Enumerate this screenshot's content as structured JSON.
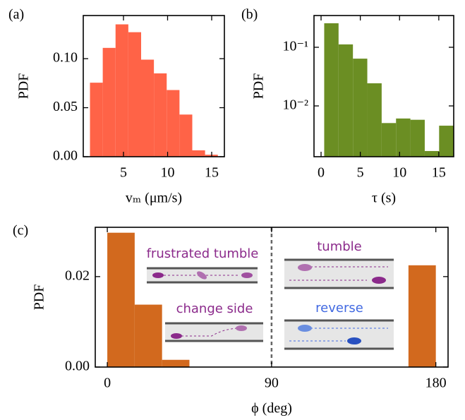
{
  "chart_data": [
    {
      "type": "histogram",
      "panel_label": "(a)",
      "xlabel": "vₘ (μm/s)",
      "ylabel": "PDF",
      "color": "#ff6347",
      "bins": [
        1.2,
        2.65,
        4.1,
        5.55,
        7.0,
        8.45,
        9.9,
        11.35,
        12.8,
        14.25,
        15.7
      ],
      "values": [
        0.0755,
        0.111,
        0.135,
        0.127,
        0.099,
        0.085,
        0.068,
        0.043,
        0.0065,
        0.002
      ],
      "xlim": [
        0.44,
        16.44
      ],
      "xticks": [
        5,
        10,
        15
      ],
      "ylim": [
        0,
        0.144
      ],
      "yticks": [
        {
          "value": 0,
          "label": "0.00"
        },
        {
          "value": 0.05,
          "label": "0.05"
        },
        {
          "value": 0.1,
          "label": "0.10"
        }
      ],
      "log_y": false
    },
    {
      "type": "histogram",
      "panel_label": "(b)",
      "xlabel": "τ (s)",
      "ylabel": "PDF",
      "color": "#6b8e23",
      "bins": [
        0.4,
        2.23,
        4.06,
        5.89,
        7.72,
        9.55,
        11.38,
        13.21,
        15.04,
        16.87
      ],
      "values": [
        0.257,
        0.112,
        0.064,
        0.0243,
        0.0051,
        0.0061,
        0.0058,
        0.0017,
        0.0046
      ],
      "xlim": [
        -0.9,
        16.9
      ],
      "xticks": [
        0,
        5,
        10,
        15
      ],
      "ylim": [
        0.00136,
        0.348
      ],
      "yticks": [
        {
          "value": 0.01,
          "label": "10⁻²"
        },
        {
          "value": 0.1,
          "label": "10⁻¹"
        }
      ],
      "log_y": true
    },
    {
      "type": "histogram",
      "panel_label": "(c)",
      "xlabel": "ϕ (deg)",
      "ylabel": "PDF",
      "color": "#d2691e",
      "bins": [
        0,
        15,
        30,
        45,
        60,
        75,
        90,
        105,
        120,
        135,
        150,
        165,
        180
      ],
      "values": [
        0.0297,
        0.0138,
        0.0016,
        0,
        0,
        0,
        0,
        0,
        0,
        0,
        0,
        0.0225
      ],
      "xlim": [
        -6.6,
        186.7
      ],
      "xticks": [
        0,
        90,
        180
      ],
      "ylim": [
        0,
        0.0309
      ],
      "yticks": [
        {
          "value": 0,
          "label": "0.00"
        },
        {
          "value": 0.02,
          "label": "0.02"
        }
      ],
      "log_y": false,
      "vline": 90,
      "annotations": [
        "frustrated tumble",
        "change side",
        "tumble",
        "reverse"
      ]
    }
  ]
}
